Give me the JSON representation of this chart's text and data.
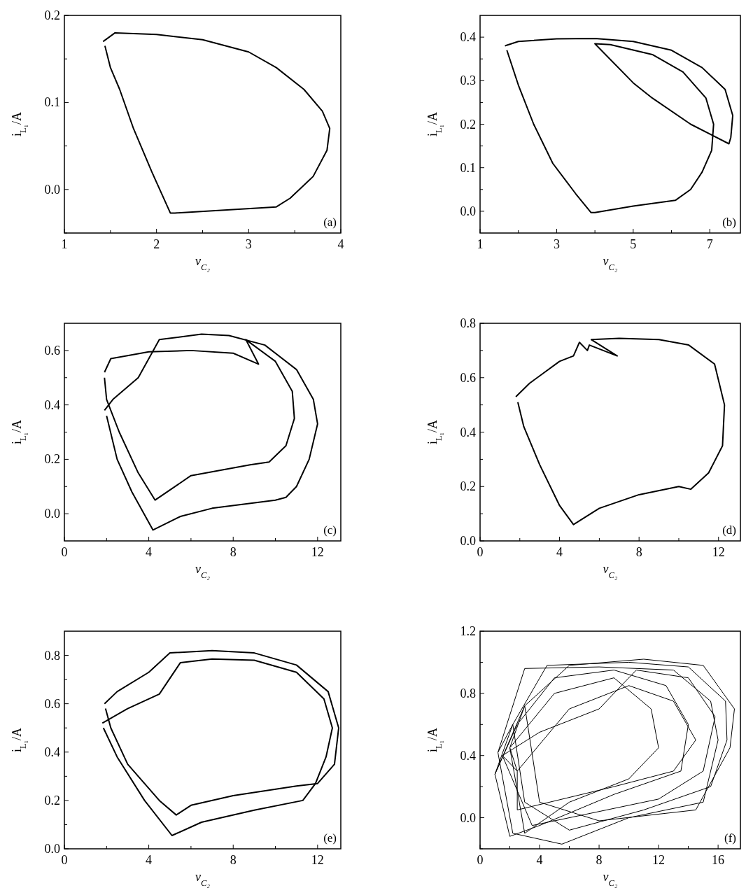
{
  "chart_data": [
    {
      "type": "line",
      "xlabel": "v$_{C₂}$",
      "ylabel": "i$_{L₁}$/A",
      "annotations": [
        "(a)"
      ],
      "xlim": [
        1,
        4
      ],
      "ylim": [
        -0.05,
        0.2
      ],
      "xticks": [
        1,
        {
          "value": 1.5,
          "label": null
        },
        2,
        {
          "value": 2.5,
          "label": null
        },
        3,
        {
          "value": 3.5,
          "label": null
        },
        4
      ],
      "yticks": [
        {
          "value": -0.05,
          "label": null
        },
        {
          "value": 0,
          "label": "0.0"
        },
        {
          "value": 0.05,
          "label": null
        },
        0.1,
        {
          "value": 0.15,
          "label": null
        },
        0.2
      ],
      "grid": false,
      "legend": false,
      "series": [
        {
          "color": "#000000",
          "x": [
            1.42,
            1.55,
            2.0,
            2.5,
            3.0,
            3.3,
            3.6,
            3.8,
            3.88,
            3.85,
            3.7,
            3.45,
            3.3,
            2.2,
            2.15,
            1.95,
            1.75,
            1.6,
            1.5,
            1.44
          ],
          "values": [
            0.17,
            0.18,
            0.178,
            0.172,
            0.158,
            0.14,
            0.115,
            0.09,
            0.07,
            0.045,
            0.015,
            -0.01,
            -0.02,
            -0.027,
            -0.027,
            0.02,
            0.07,
            0.115,
            0.14,
            0.165
          ]
        }
      ]
    },
    {
      "type": "line",
      "xlabel": "v$_{C₂}$",
      "ylabel": "i$_{L₁}$/A",
      "annotations": [
        "(b)"
      ],
      "xlim": [
        1,
        7.8
      ],
      "ylim": [
        -0.05,
        0.45
      ],
      "xticks": [
        1,
        {
          "value": 2,
          "label": null
        },
        3,
        {
          "value": 4,
          "label": null
        },
        5,
        {
          "value": 6,
          "label": null
        },
        7
      ],
      "yticks": [
        {
          "value": 0,
          "label": "0.0"
        },
        {
          "value": 0.05,
          "label": null
        },
        0.1,
        {
          "value": 0.15,
          "label": null
        },
        0.2,
        {
          "value": 0.25,
          "label": null
        },
        0.3,
        {
          "value": 0.35,
          "label": null
        },
        0.4
      ],
      "grid": false,
      "legend": false,
      "series": [
        {
          "color": "#000000",
          "x": [
            1.65,
            2.0,
            3,
            4,
            5,
            6,
            6.8,
            7.4,
            7.6,
            7.55,
            7.5,
            6.5,
            5.5,
            5,
            4,
            4.4,
            5.5,
            6.3,
            6.9,
            7.1,
            7.05,
            6.8,
            6.5,
            6.1,
            5,
            4.0,
            3.9,
            3.5,
            2.9,
            2.4,
            2.0,
            1.7
          ],
          "values": [
            0.38,
            0.39,
            0.396,
            0.397,
            0.39,
            0.37,
            0.33,
            0.28,
            0.22,
            0.17,
            0.155,
            0.2,
            0.26,
            0.295,
            0.385,
            0.383,
            0.36,
            0.32,
            0.26,
            0.2,
            0.14,
            0.09,
            0.05,
            0.025,
            0.012,
            -0.003,
            -0.003,
            0.04,
            0.11,
            0.2,
            0.29,
            0.37
          ]
        }
      ]
    },
    {
      "type": "line",
      "xlabel": "v$_{C₂}$",
      "ylabel": "i$_{L₁}$/A",
      "annotations": [
        "(c)"
      ],
      "xlim": [
        0,
        13.1
      ],
      "ylim": [
        -0.1,
        0.7
      ],
      "xticks": [
        0,
        {
          "value": 2,
          "label": null
        },
        4,
        {
          "value": 6,
          "label": null
        },
        8,
        {
          "value": 10,
          "label": null
        },
        12
      ],
      "yticks": [
        {
          "value": 0,
          "label": "0.0"
        },
        {
          "value": 0.1,
          "label": null
        },
        0.2,
        {
          "value": 0.3,
          "label": null
        },
        0.4,
        {
          "value": 0.5,
          "label": null
        },
        0.6
      ],
      "grid": false,
      "legend": false,
      "series": [
        {
          "color": "#000000",
          "x": [
            1.9,
            2.3,
            3.5,
            4.5,
            6.5,
            7.8,
            9.5,
            11,
            11.8,
            12.0,
            11.6,
            11,
            10.5,
            10,
            7,
            5.5,
            4.2,
            3.2,
            2.5,
            2.0
          ],
          "values": [
            0.38,
            0.42,
            0.5,
            0.64,
            0.66,
            0.655,
            0.62,
            0.53,
            0.42,
            0.33,
            0.2,
            0.1,
            0.06,
            0.05,
            0.02,
            -0.01,
            -0.06,
            0.08,
            0.2,
            0.36
          ]
        },
        {
          "color": "#000000",
          "x": [
            1.9,
            2.2,
            4,
            6,
            8,
            9.2,
            8.6,
            10,
            10.8,
            10.9,
            10.5,
            9.7,
            8.8,
            6,
            4.3,
            3.5,
            2.6,
            2.0,
            1.9
          ],
          "values": [
            0.52,
            0.57,
            0.595,
            0.6,
            0.59,
            0.55,
            0.64,
            0.56,
            0.45,
            0.35,
            0.25,
            0.19,
            0.18,
            0.14,
            0.05,
            0.15,
            0.3,
            0.42,
            0.5
          ]
        }
      ]
    },
    {
      "type": "line",
      "xlabel": "v$_{C₂}$",
      "ylabel": "i$_{L₁}$/A",
      "annotations": [
        "(d)"
      ],
      "xlim": [
        0,
        13.1
      ],
      "ylim": [
        0,
        0.8
      ],
      "xticks": [
        0,
        {
          "value": 2,
          "label": null
        },
        4,
        {
          "value": 6,
          "label": null
        },
        8,
        {
          "value": 10,
          "label": null
        },
        12
      ],
      "yticks": [
        {
          "value": 0,
          "label": "0.0"
        },
        {
          "value": 0.1,
          "label": null
        },
        0.2,
        {
          "value": 0.3,
          "label": null
        },
        0.4,
        {
          "value": 0.5,
          "label": null
        },
        0.6,
        {
          "value": 0.7,
          "label": null
        },
        0.8
      ],
      "grid": false,
      "legend": false,
      "series": [
        {
          "color": "#000000",
          "x": [
            1.8,
            2.5,
            4,
            4.7,
            5,
            5.4,
            5.5,
            6.9,
            5.6,
            7,
            9,
            10.5,
            11.8,
            12.3,
            12.2,
            11.5,
            10.6,
            10,
            8,
            6,
            4.7,
            4,
            3,
            2.2,
            1.9
          ],
          "values": [
            0.53,
            0.58,
            0.66,
            0.68,
            0.73,
            0.7,
            0.72,
            0.68,
            0.74,
            0.745,
            0.74,
            0.72,
            0.65,
            0.5,
            0.35,
            0.25,
            0.19,
            0.2,
            0.17,
            0.12,
            0.06,
            0.13,
            0.28,
            0.42,
            0.51
          ]
        }
      ]
    },
    {
      "type": "line",
      "xlabel": "v$_{C₂}$",
      "ylabel": "i$_{L₁}$/A",
      "annotations": [
        "(e)"
      ],
      "xlim": [
        0,
        13.1
      ],
      "ylim": [
        0,
        0.9
      ],
      "xticks": [
        0,
        {
          "value": 2,
          "label": null
        },
        4,
        {
          "value": 6,
          "label": null
        },
        8,
        {
          "value": 10,
          "label": null
        },
        12
      ],
      "yticks": [
        {
          "value": 0,
          "label": "0.0"
        },
        {
          "value": 0.1,
          "label": null
        },
        0.2,
        {
          "value": 0.3,
          "label": null
        },
        0.4,
        {
          "value": 0.5,
          "label": null
        },
        0.6,
        {
          "value": 0.7,
          "label": null
        },
        0.8
      ],
      "grid": false,
      "legend": false,
      "series": [
        {
          "color": "#000000",
          "x": [
            1.9,
            2.5,
            4,
            5,
            7,
            9,
            11,
            12.5,
            13.0,
            12.8,
            12,
            11,
            8,
            6,
            5.3,
            4.5,
            3,
            2.2,
            1.95
          ],
          "values": [
            0.6,
            0.65,
            0.73,
            0.81,
            0.82,
            0.81,
            0.76,
            0.65,
            0.5,
            0.35,
            0.27,
            0.26,
            0.22,
            0.18,
            0.14,
            0.2,
            0.35,
            0.5,
            0.58
          ]
        },
        {
          "color": "#000000",
          "x": [
            1.8,
            3,
            4.5,
            5.5,
            7,
            9,
            11,
            12.3,
            12.7,
            12.4,
            11.9,
            11.3,
            9,
            6.5,
            5.1,
            3.8,
            2.5,
            1.85
          ],
          "values": [
            0.52,
            0.58,
            0.64,
            0.77,
            0.785,
            0.78,
            0.73,
            0.62,
            0.5,
            0.38,
            0.27,
            0.2,
            0.16,
            0.11,
            0.055,
            0.2,
            0.38,
            0.5
          ]
        }
      ]
    },
    {
      "type": "line",
      "xlabel": "v$_{C₂}$",
      "ylabel": "i$_{L₁}$/A",
      "annotations": [
        "(f)"
      ],
      "xlim": [
        0,
        17.5
      ],
      "ylim": [
        -0.2,
        1.2
      ],
      "xticks": [
        0,
        {
          "value": 2,
          "label": null
        },
        4,
        {
          "value": 6,
          "label": null
        },
        8,
        {
          "value": 10,
          "label": null
        },
        12,
        {
          "value": 14,
          "label": null
        },
        16
      ],
      "yticks": [
        {
          "value": -0.2,
          "label": null
        },
        {
          "value": 0,
          "label": "0.0"
        },
        {
          "value": 0.2,
          "label": null
        },
        0.4,
        {
          "value": 0.6,
          "label": null
        },
        0.8,
        {
          "value": 1.0,
          "label": null
        },
        1.2
      ],
      "grid": false,
      "legend": false,
      "series": [
        {
          "color": "#000000",
          "x": [
            1.2,
            3,
            8,
            13,
            15.5,
            16,
            15,
            10,
            5.5,
            2.2,
            1.2,
            2.2,
            4.5,
            10,
            14,
            16.5,
            16.6,
            15.5,
            11,
            6,
            3,
            2.2,
            1.0,
            2.5,
            5,
            9,
            12.5,
            14,
            13.5,
            9,
            4,
            2,
            1.0,
            3,
            6,
            11,
            15,
            17.1,
            16.8,
            14.5,
            8,
            4,
            3,
            2,
            5,
            9,
            11.5,
            12,
            10,
            6,
            3,
            2,
            2.5,
            6,
            10,
            13,
            14.5,
            13,
            9,
            2.5,
            2.5,
            1.5,
            4,
            8,
            10.5,
            14,
            15.8,
            15,
            12,
            7,
            3.5,
            1.5
          ],
          "values": [
            0.42,
            0.96,
            0.97,
            0.95,
            0.75,
            0.5,
            0.1,
            0,
            -0.17,
            -0.1,
            0.42,
            0.6,
            0.98,
            1.0,
            0.97,
            0.75,
            0.5,
            0.2,
            0.05,
            -0.08,
            0.1,
            0.6,
            0.28,
            0.6,
            0.9,
            0.95,
            0.85,
            0.6,
            0.3,
            0.15,
            -0.05,
            -0.12,
            0.28,
            0.72,
            0.98,
            1.02,
            0.98,
            0.7,
            0.45,
            0.05,
            -0.02,
            0.1,
            0.72,
            0.45,
            0.8,
            0.9,
            0.7,
            0.45,
            0.25,
            0.1,
            -0.1,
            0.45,
            0.3,
            0.7,
            0.85,
            0.75,
            0.5,
            0.3,
            0.2,
            0.05,
            0.3,
            0.4,
            0.55,
            0.7,
            0.95,
            0.9,
            0.65,
            0.3,
            0.12,
            0.02,
            -0.05,
            0.4
          ]
        }
      ]
    }
  ]
}
